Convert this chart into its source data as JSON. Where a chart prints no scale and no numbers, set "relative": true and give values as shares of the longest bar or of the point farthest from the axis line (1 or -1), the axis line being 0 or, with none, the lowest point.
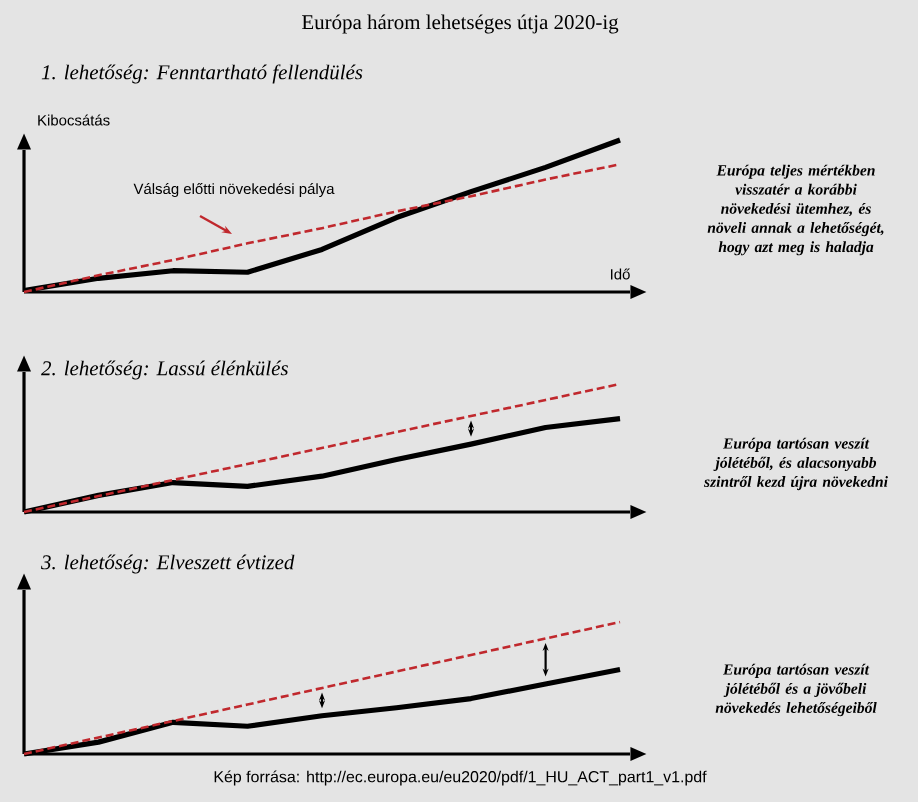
{
  "chart_data": [
    {
      "type": "line",
      "title": "Európa három lehetséges útja 2020-ig",
      "subtitle": "1. lehetőség: Fenntartható fellendülés",
      "xlabel": "Idő",
      "ylabel": "Kibocsátás",
      "relative": true,
      "categories": [
        null,
        null,
        null,
        null,
        null,
        null,
        null,
        null,
        null
      ],
      "series": [
        {
          "color": "#000000",
          "line_style": "solid",
          "values": [
            0.01,
            0.09,
            0.14,
            0.13,
            0.28,
            0.49,
            0.66,
            0.82,
            1
          ]
        },
        {
          "name": "Válság előtti növekedési pálya",
          "color": "#c0282d",
          "line_style": "dashed",
          "values": [
            0,
            0.11,
            0.21,
            0.32,
            0.42,
            0.53,
            0.63,
            0.74,
            0.84
          ]
        }
      ],
      "annotations": [
        "Európa teljes mértékben visszatér a korábbi növekedési ütemhez, és növeli annak a lehetőségét, hogy azt meg is haladja"
      ]
    },
    {
      "type": "line",
      "title": "2. lehetőség: Lassú élénkülés",
      "relative": true,
      "categories": [
        null,
        null,
        null,
        null,
        null,
        null,
        null,
        null,
        null
      ],
      "series": [
        {
          "color": "#000000",
          "line_style": "solid",
          "values": [
            0,
            0.13,
            0.23,
            0.2,
            0.28,
            0.41,
            0.53,
            0.66,
            0.73
          ]
        },
        {
          "color": "#c0282d",
          "line_style": "dashed",
          "values": [
            0,
            0.125,
            0.25,
            0.375,
            0.5,
            0.625,
            0.75,
            0.875,
            1
          ]
        }
      ],
      "annotations": [
        "Európa tartósan veszít jólétéből, és alacsonyabb szintről kezd újra növekedni"
      ]
    },
    {
      "type": "line",
      "title": "3. lehetőség: Elveszett évtized",
      "relative": true,
      "categories": [
        null,
        null,
        null,
        null,
        null,
        null,
        null,
        null,
        null
      ],
      "series": [
        {
          "color": "#000000",
          "line_style": "solid",
          "values": [
            0,
            0.09,
            0.24,
            0.21,
            0.29,
            0.35,
            0.42,
            0.53,
            0.64
          ]
        },
        {
          "color": "#c0282d",
          "line_style": "dashed",
          "values": [
            0,
            0.125,
            0.25,
            0.375,
            0.5,
            0.625,
            0.75,
            0.875,
            1
          ]
        }
      ],
      "annotations": [
        "Európa tartósan veszít jólétéből és a jövőbeli növekedés lehetőségeiből",
        "Kép forrása: http://ec.europa.eu/eu2020/pdf/1_HU_ACT_part1_v1.pdf"
      ]
    }
  ]
}
